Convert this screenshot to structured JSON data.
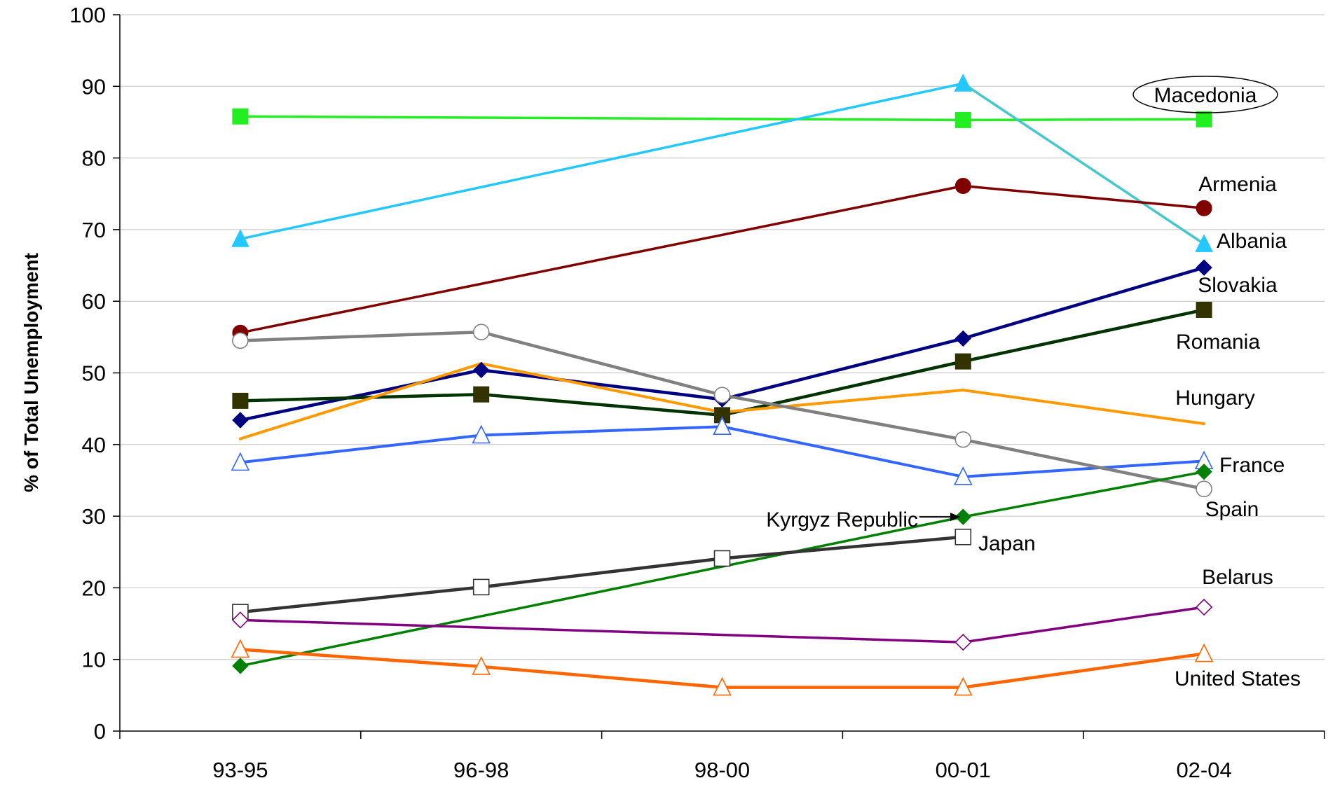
{
  "chart_data": {
    "type": "line",
    "title": "",
    "xlabel": "",
    "ylabel": "% of Total Unemployment",
    "ylim": [
      0,
      100
    ],
    "yticks": [
      0,
      10,
      20,
      30,
      40,
      50,
      60,
      70,
      80,
      90,
      100
    ],
    "grid": "horizontal",
    "legend": "none (series labelled at line ends)",
    "categories": [
      "93-95",
      "96-98",
      "98-00",
      "00-01",
      "02-04"
    ],
    "series": [
      {
        "name": "Macedonia",
        "color": "#22ee22",
        "marker": "square-filled",
        "values": [
          85.8,
          null,
          null,
          85.3,
          85.4
        ]
      },
      {
        "name": "Albania",
        "color": "#22c8ff",
        "color2": "#44c8c8",
        "marker": "triangle-filled",
        "values": [
          68.7,
          null,
          null,
          90.4,
          68.0
        ]
      },
      {
        "name": "Armenia",
        "color": "#800000",
        "marker": "circle-filled",
        "values": [
          55.6,
          null,
          null,
          76.1,
          73.0
        ]
      },
      {
        "name": "Slovakia",
        "color": "#000080",
        "marker": "diamond-filled",
        "values": [
          43.4,
          50.4,
          46.3,
          54.8,
          64.7
        ]
      },
      {
        "name": "Romania",
        "color": "#003300",
        "marker": "square-filled",
        "marker_color": "#333300",
        "values": [
          46.1,
          47.0,
          44.1,
          51.6,
          58.8
        ]
      },
      {
        "name": "Hungary",
        "color": "#ff9900",
        "marker": "none",
        "values": [
          40.8,
          51.3,
          44.5,
          47.6,
          42.9
        ]
      },
      {
        "name": "France",
        "color": "#3366ff",
        "marker": "triangle-open",
        "values": [
          37.5,
          41.3,
          42.5,
          35.5,
          37.7
        ]
      },
      {
        "name": "Spain",
        "color": "#808080",
        "marker": "circle-open",
        "values": [
          54.5,
          55.7,
          46.9,
          40.7,
          33.8
        ]
      },
      {
        "name": "Kyrgyz Republic",
        "color": "#008000",
        "marker": "diamond-filled",
        "values": [
          9.1,
          null,
          null,
          29.9,
          36.2
        ]
      },
      {
        "name": "Japan",
        "color": "#333333",
        "marker": "square-open",
        "values": [
          16.6,
          20.1,
          24.1,
          27.1,
          null
        ]
      },
      {
        "name": "Belarus",
        "color": "#800080",
        "marker": "diamond-open",
        "values": [
          15.5,
          null,
          null,
          12.4,
          17.3
        ]
      },
      {
        "name": "United States",
        "color": "#ff6600",
        "marker": "triangle-open",
        "values": [
          11.4,
          9.0,
          6.1,
          6.1,
          10.8
        ]
      }
    ]
  }
}
